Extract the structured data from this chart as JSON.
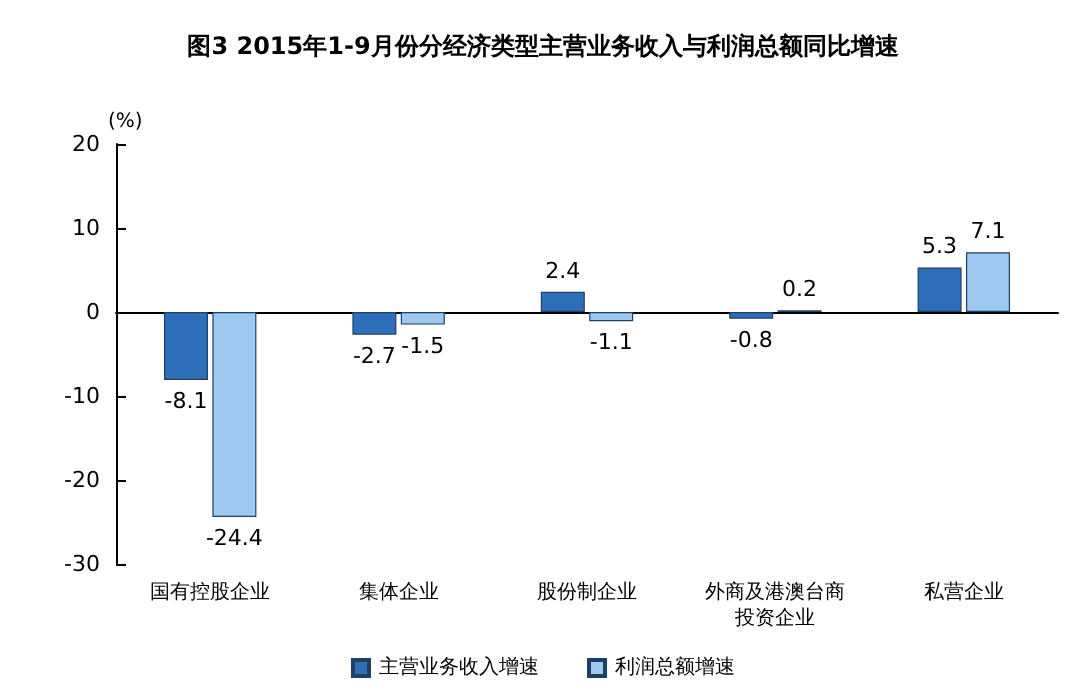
{
  "chart_data": {
    "type": "bar",
    "title": "图3 2015年1-9月份分经济类型主营业务收入与利润总额同比增速",
    "ylabel": "(%)",
    "categories": [
      "国有控股企业",
      "集体企业",
      "股份制企业",
      "外商及港澳台商投资企业",
      "私营企业"
    ],
    "series": [
      {
        "name": "主营业务收入增速",
        "color": "#2e6fba",
        "values": [
          -8.1,
          -2.7,
          2.4,
          -0.8,
          5.3
        ]
      },
      {
        "name": "利润总额增速",
        "color": "#9dc8f0",
        "values": [
          -24.4,
          -1.5,
          -1.1,
          0.2,
          7.1
        ]
      }
    ],
    "ylim": [
      -30,
      20
    ],
    "yticks": [
      -30,
      -20,
      -10,
      0,
      10,
      20
    ],
    "legend": "bottom",
    "data_labels": true
  }
}
